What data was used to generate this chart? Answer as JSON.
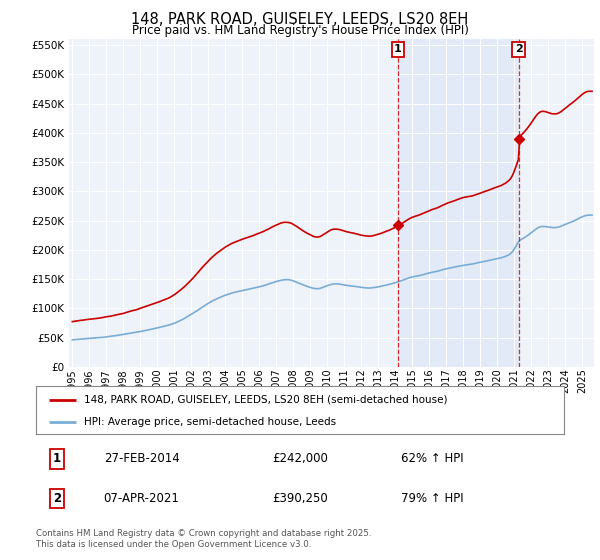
{
  "title": "148, PARK ROAD, GUISELEY, LEEDS, LS20 8EH",
  "subtitle": "Price paid vs. HM Land Registry's House Price Index (HPI)",
  "legend_line1": "148, PARK ROAD, GUISELEY, LEEDS, LS20 8EH (semi-detached house)",
  "legend_line2": "HPI: Average price, semi-detached house, Leeds",
  "annotation1_amount": "£242,000",
  "annotation1_hpi": "62% ↑ HPI",
  "annotation1_text": "27-FEB-2014",
  "annotation1_price": 242000,
  "annotation2_amount": "£390,250",
  "annotation2_hpi": "79% ↑ HPI",
  "annotation2_text": "07-APR-2021",
  "annotation2_price": 390250,
  "vline1_x": 2014.16,
  "vline2_x": 2021.27,
  "red_color": "#cc0000",
  "blue_color": "#7aadd6",
  "vline_color": "#cc0000",
  "shade_color": "#dce8f5",
  "ylim": [
    0,
    560000
  ],
  "xlim_start": 1994.8,
  "xlim_end": 2025.7,
  "footer": "Contains HM Land Registry data © Crown copyright and database right 2025.\nThis data is licensed under the Open Government Licence v3.0.",
  "background_color": "#ffffff",
  "plot_bg_color": "#eef2f9"
}
